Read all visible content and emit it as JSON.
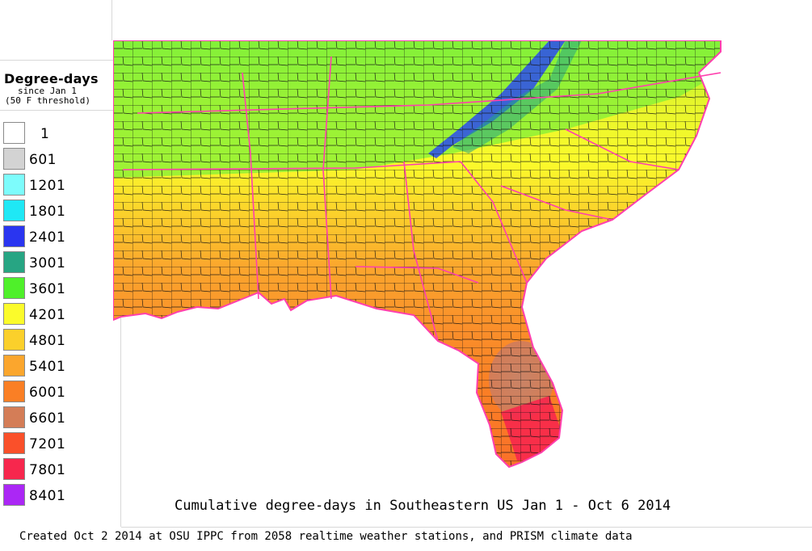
{
  "legend": {
    "title": "Degree-days",
    "subtitle_line1": "since Jan 1",
    "subtitle_line2": "(50 F threshold)",
    "items": [
      {
        "label": "1",
        "color": "#ffffff"
      },
      {
        "label": "601",
        "color": "#d3d3d3"
      },
      {
        "label": "1201",
        "color": "#7dfcfc"
      },
      {
        "label": "1801",
        "color": "#1fe8f5"
      },
      {
        "label": "2401",
        "color": "#2a35f0"
      },
      {
        "label": "3001",
        "color": "#27a583"
      },
      {
        "label": "3601",
        "color": "#4ff02a"
      },
      {
        "label": "4201",
        "color": "#fbfb2b"
      },
      {
        "label": "4801",
        "color": "#fbd02b"
      },
      {
        "label": "5401",
        "color": "#fba62d"
      },
      {
        "label": "6001",
        "color": "#fa7f25"
      },
      {
        "label": "6601",
        "color": "#d47d57"
      },
      {
        "label": "7201",
        "color": "#fa502a"
      },
      {
        "label": "7801",
        "color": "#f7274d"
      },
      {
        "label": "8401",
        "color": "#ab27f5"
      }
    ]
  },
  "map": {
    "title": "Cumulative degree-days in Southeastern US Jan 1 - Oct 6 2014",
    "colors": {
      "state_border": "#ff3fae",
      "county_border": "#111111",
      "water": "#ffffff"
    }
  },
  "footer": {
    "credit": "Created Oct 2 2014 at OSU IPPC from 2058 realtime weather stations, and PRISM climate data"
  }
}
